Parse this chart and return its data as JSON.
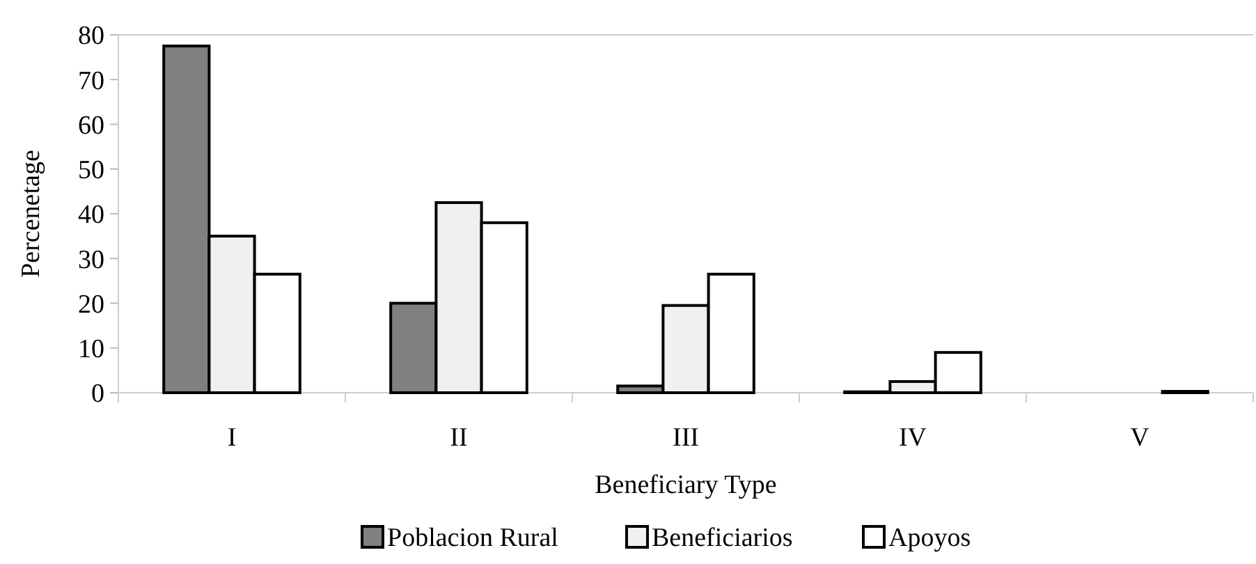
{
  "chart_data": {
    "type": "bar",
    "xlabel": "Beneficiary Type",
    "ylabel": "Percenetage",
    "categories": [
      "I",
      "II",
      "III",
      "IV",
      "V"
    ],
    "series": [
      {
        "name": "Poblacion Rural",
        "color": "#808080",
        "values": [
          77.5,
          20,
          1.5,
          0.2,
          0
        ]
      },
      {
        "name": "Beneficiarios",
        "color": "#f0f0f0",
        "values": [
          35,
          42.5,
          19.5,
          2.5,
          0
        ]
      },
      {
        "name": "Apoyos",
        "color": "#ffffff",
        "values": [
          26.5,
          38,
          26.5,
          9,
          0.3
        ]
      }
    ],
    "ylim": [
      0,
      80
    ],
    "yticks": [
      0,
      10,
      20,
      30,
      40,
      50,
      60,
      70,
      80
    ],
    "grid": false,
    "legend": "bottom"
  }
}
